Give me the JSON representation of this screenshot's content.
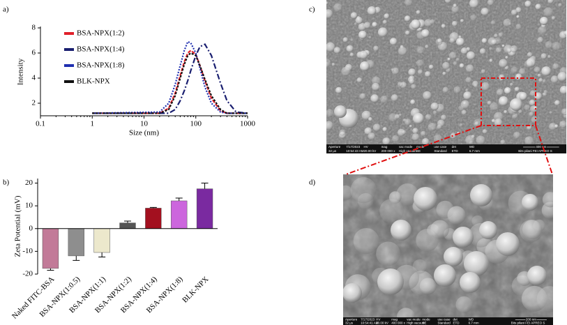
{
  "panels": [
    "a)",
    "b)",
    "c)",
    "d)"
  ],
  "chart_data": [
    {
      "type": "line",
      "xlabel": "Size (nm)",
      "ylabel": "Intensity",
      "xscale": "log",
      "xlim": [
        0.1,
        1000
      ],
      "xticks": [
        0.1,
        1,
        10,
        100,
        1000
      ],
      "ylim": [
        1,
        8
      ],
      "yticks": [
        2,
        4,
        6,
        8
      ],
      "legend": "upper left",
      "x": [
        1,
        20,
        30,
        40,
        50,
        60,
        70,
        80,
        100,
        120,
        150,
        200,
        300,
        400,
        600,
        1000
      ],
      "series": [
        {
          "name": "BSA-NPX(1:2)",
          "color": "#e0202a",
          "dash": "5 2",
          "values": [
            1.2,
            1.2,
            1.6,
            2.8,
            4.2,
            5.3,
            6.0,
            6.2,
            5.9,
            5.0,
            3.8,
            2.4,
            1.4,
            1.2,
            1.2,
            1.2
          ]
        },
        {
          "name": "BSA-NPX(1:4)",
          "color": "#1a1f70",
          "dash": "8 3 2 3",
          "values": [
            1.2,
            1.2,
            1.2,
            1.5,
            2.2,
            3.0,
            3.8,
            4.6,
            5.8,
            6.5,
            6.7,
            5.8,
            3.6,
            2.2,
            1.3,
            1.2
          ]
        },
        {
          "name": "BSA-NPX(1:8)",
          "color": "#1f2fb0",
          "dash": "2 2",
          "values": [
            1.2,
            1.3,
            2.0,
            3.5,
            5.0,
            6.2,
            6.9,
            6.8,
            6.0,
            4.8,
            3.3,
            2.0,
            1.3,
            1.2,
            1.2,
            1.2
          ]
        },
        {
          "name": "BLK-NPX",
          "color": "#111111",
          "dash": "3 2",
          "values": [
            1.2,
            1.2,
            1.5,
            2.6,
            4.0,
            5.1,
            5.8,
            6.0,
            5.8,
            5.0,
            3.9,
            2.6,
            1.5,
            1.2,
            1.2,
            1.2
          ]
        }
      ]
    },
    {
      "type": "bar",
      "ylabel": "Zeta Potential (mV)",
      "ylim": [
        -20,
        22
      ],
      "yticks": [
        -20,
        -10,
        0,
        10,
        20
      ],
      "categories": [
        "Naked FITC-BSA",
        "BSA-NPX(1:0.5)",
        "BSA-NPX(1:1)",
        "BSA-NPX(1:2)",
        "BSA-NPX(1:4)",
        "BSA-NPX(1:8)",
        "BLK-NPX"
      ],
      "values": [
        -17.5,
        -12,
        -10.5,
        2.5,
        9,
        12.2,
        17.5
      ],
      "errors": [
        0.8,
        2,
        2,
        0.8,
        0.3,
        1.2,
        2.5
      ],
      "colors": [
        "#c27a98",
        "#8e8e8e",
        "#ece8cc",
        "#555555",
        "#a3101f",
        "#cc66dd",
        "#7a2aa0"
      ]
    }
  ],
  "sem": [
    {
      "header": [
        "Aperture",
        "7/17/2023",
        "HV",
        "mag",
        "vac mode",
        "mode",
        "use case",
        "det",
        "WD"
      ],
      "info": [
        "32 µs",
        "10:54:43 AM",
        "20.00 kV",
        "200 000 x",
        "High vacuum",
        "SE",
        "Standard",
        "ETD",
        "6.7 mm"
      ],
      "scale": "400 nm",
      "footer": "Bits pilani FEI APREO S"
    },
    {
      "header": [
        "Aperture",
        "7/17/2023",
        "HV",
        "mag",
        "vac mode",
        "mode",
        "use case",
        "det",
        "WD"
      ],
      "info": [
        "32 µs",
        "10:54:41 AM",
        "20.00 kV",
        "400 000 x",
        "High vacuum",
        "SE",
        "Standard",
        "ETD",
        "6.7 mm"
      ],
      "scale": "200 nm",
      "footer": "Bits pilani FEI APREO S"
    }
  ]
}
